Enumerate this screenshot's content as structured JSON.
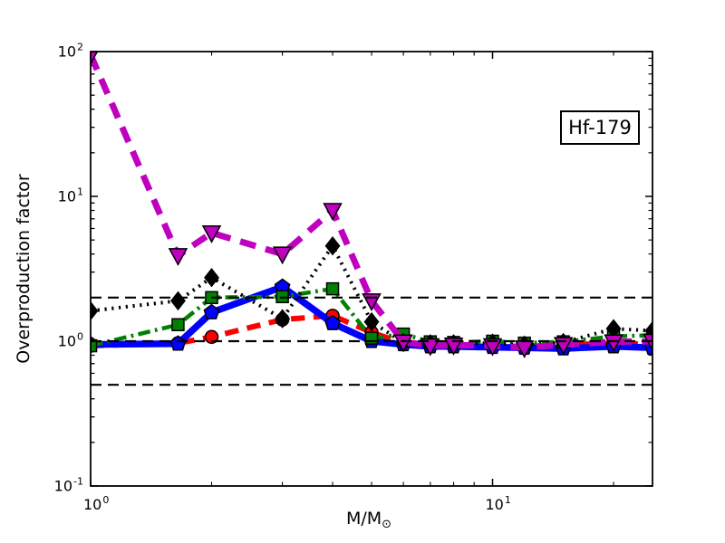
{
  "chart_data": {
    "type": "line",
    "title": "",
    "annotation": {
      "text": "Hf-179"
    },
    "xlabel": "M/M⊙",
    "xlabel_main": "M/M",
    "xlabel_sub": "⊙",
    "ylabel": "Overproduction factor",
    "x_scale": "log",
    "y_scale": "log",
    "xlim": [
      1,
      25
    ],
    "ylim": [
      0.1,
      100
    ],
    "grid": false,
    "legend": false,
    "x_ticks": [
      {
        "value": 1,
        "label": "10^0"
      },
      {
        "value": 10,
        "label": "10^1"
      }
    ],
    "y_ticks": [
      {
        "value": 0.1,
        "label": "10^-1"
      },
      {
        "value": 1,
        "label": "10^0"
      },
      {
        "value": 10,
        "label": "10^1"
      },
      {
        "value": 100,
        "label": "10^2"
      }
    ],
    "reference_lines": {
      "style": "dashed",
      "color": "#000000",
      "y_values": [
        0.5,
        1.0,
        2.0
      ]
    },
    "x": [
      1,
      1.65,
      2,
      3,
      4,
      5,
      6,
      7,
      8,
      10,
      12,
      15,
      20,
      25
    ],
    "series": [
      {
        "name": "red-thick-dashed-circles",
        "color": "#ff0000",
        "line_style": "dashed",
        "line_width": 6,
        "marker": "circle",
        "values": [
          0.93,
          0.97,
          1.07,
          1.41,
          1.5,
          1.15,
          0.97,
          0.95,
          0.94,
          0.93,
          0.92,
          0.94,
          0.97,
          0.95
        ]
      },
      {
        "name": "blue-thick-solid-pentagons",
        "color": "#0000ff",
        "line_style": "solid",
        "line_width": 7.5,
        "marker": "pentagon",
        "values": [
          0.95,
          0.96,
          1.58,
          2.37,
          1.33,
          1.0,
          0.95,
          0.92,
          0.92,
          0.91,
          0.9,
          0.89,
          0.92,
          0.9
        ]
      },
      {
        "name": "green-dashdot-squares",
        "color": "#008000",
        "line_style": "dashdot",
        "line_width": 4.5,
        "marker": "square",
        "values": [
          0.93,
          1.3,
          2.0,
          2.03,
          2.3,
          1.05,
          1.12,
          0.99,
          0.98,
          1.0,
          0.97,
          0.99,
          1.08,
          1.1
        ]
      },
      {
        "name": "black-dotted-diamonds",
        "color": "#000000",
        "line_style": "dotted",
        "line_width": 4,
        "marker": "diamond",
        "values": [
          1.62,
          1.9,
          2.75,
          1.43,
          4.55,
          1.36,
          0.98,
          0.96,
          0.96,
          0.97,
          0.94,
          0.98,
          1.22,
          1.18
        ]
      },
      {
        "name": "magenta-thick-dashed-triangles",
        "color": "#bf00bf",
        "line_style": "dashed",
        "line_width": 7,
        "marker": "triangle-down",
        "values": [
          95,
          3.9,
          5.6,
          4.0,
          8.0,
          1.9,
          0.99,
          0.93,
          0.94,
          0.93,
          0.9,
          0.95,
          0.99,
          1.0
        ]
      }
    ]
  }
}
